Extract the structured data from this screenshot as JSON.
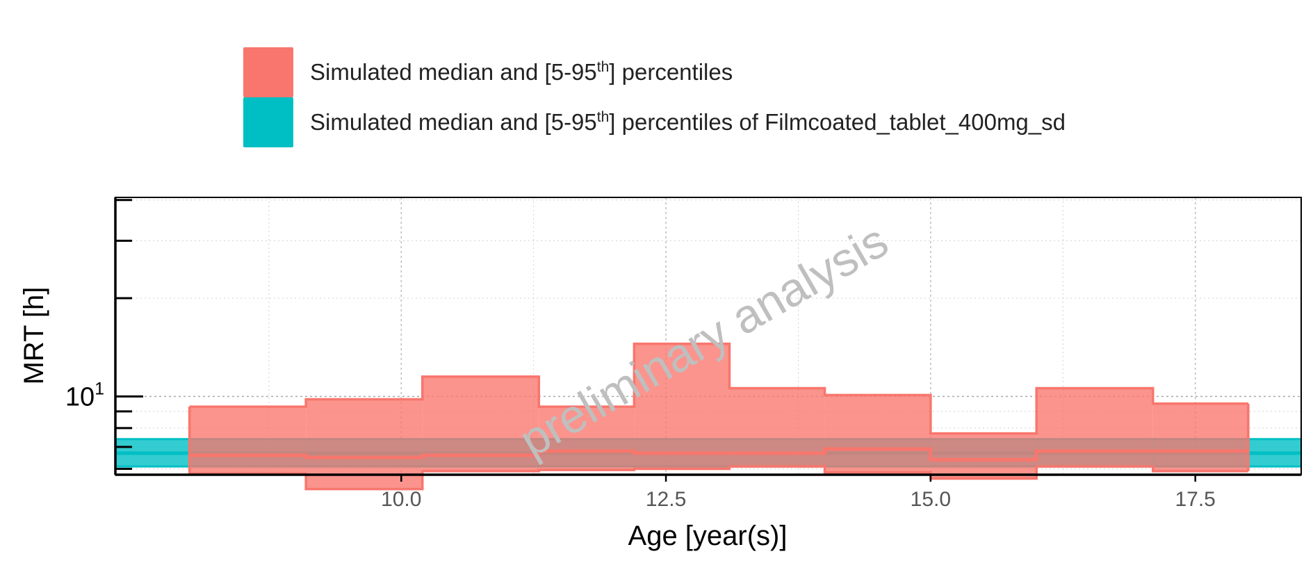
{
  "chart_data": {
    "type": "area",
    "xlabel": "Age [year(s)]",
    "ylabel": "MRT [h]",
    "xlim": [
      7.3,
      18.5
    ],
    "ylim_log10": [
      0.76,
      1.61
    ],
    "yscale": "log",
    "xticks": [
      10.0,
      12.5,
      15.0,
      17.5
    ],
    "xtick_labels": [
      "10.0",
      "12.5",
      "15.0",
      "17.5"
    ],
    "ytick_labels": [
      {
        "base": "10",
        "exp": "1"
      }
    ],
    "grid": true,
    "legend_position": "top",
    "watermark": "preliminary analysis",
    "colors": {
      "simulated": "#F8766D",
      "reference": "#00BFC4",
      "axis": "#000000",
      "grid": "#d0d0d0",
      "tick_label": "#555555",
      "watermark": "#bfbfbf"
    },
    "series": [
      {
        "name": "Simulated median and [5-95th] percentiles",
        "type": "step-band",
        "x_edges": [
          8.0,
          9.1,
          10.2,
          11.3,
          12.2,
          13.1,
          14.0,
          15.0,
          16.0,
          17.1,
          18.0
        ],
        "upper": [
          9.3,
          9.8,
          11.5,
          9.3,
          14.5,
          10.6,
          10.1,
          7.7,
          10.6,
          9.5
        ],
        "median": [
          6.6,
          6.5,
          6.6,
          6.8,
          6.7,
          6.7,
          6.9,
          6.4,
          6.8,
          6.8
        ],
        "lower": [
          5.8,
          5.2,
          5.9,
          5.95,
          6.0,
          6.1,
          5.85,
          5.6,
          6.1,
          5.9
        ]
      },
      {
        "name": "Simulated median and [5-95th] percentiles of Filmcoated_tablet_400mg_sd",
        "type": "band",
        "x_range": [
          7.3,
          18.5
        ],
        "upper": 7.4,
        "median": 6.7,
        "lower": 6.1
      }
    ]
  },
  "legend": {
    "items": [
      {
        "prefix": "Simulated median and [5-95",
        "sup": "th",
        "suffix": "] percentiles"
      },
      {
        "prefix": "Simulated median and [5-95",
        "sup": "th",
        "suffix": "] percentiles of Filmcoated_tablet_400mg_sd"
      }
    ]
  }
}
